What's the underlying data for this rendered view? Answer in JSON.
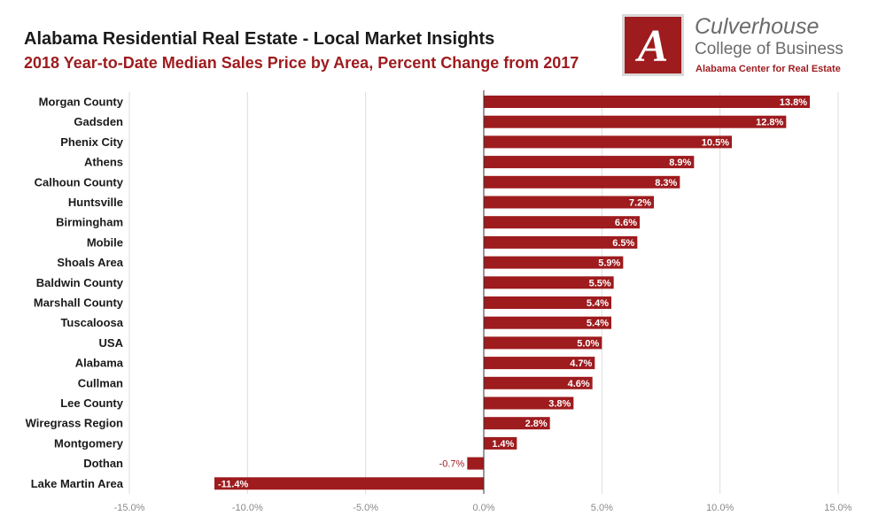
{
  "header": {
    "title": "Alabama Residential Real Estate - Local Market Insights",
    "subtitle": "2018 Year-to-Date Median Sales Price by Area, Percent Change from 2017"
  },
  "branding": {
    "logo_letter": "A",
    "name": "Culverhouse",
    "college": "College of Business",
    "center": "Alabama Center for Real Estate"
  },
  "colors": {
    "bar": "#9e1b1e",
    "accent": "#9e1b1e",
    "grid": "#dddddd",
    "zero_line": "#333333"
  },
  "chart_data": {
    "type": "bar",
    "orientation": "horizontal",
    "title": "2018 Year-to-Date Median Sales Price by Area, Percent Change from 2017",
    "categories": [
      "Morgan County",
      "Gadsden",
      "Phenix City",
      "Athens",
      "Calhoun County",
      "Huntsville",
      "Birmingham",
      "Mobile",
      "Shoals Area",
      "Baldwin County",
      "Marshall County",
      "Tuscaloosa",
      "USA",
      "Alabama",
      "Cullman",
      "Lee County",
      "Wiregrass Region",
      "Montgomery",
      "Dothan",
      "Lake Martin Area"
    ],
    "values": [
      13.8,
      12.8,
      10.5,
      8.9,
      8.3,
      7.2,
      6.6,
      6.5,
      5.9,
      5.5,
      5.4,
      5.4,
      5.0,
      4.7,
      4.6,
      3.8,
      2.8,
      1.4,
      -0.7,
      -11.4
    ],
    "value_labels": [
      "13.8%",
      "12.8%",
      "10.5%",
      "8.9%",
      "8.3%",
      "7.2%",
      "6.6%",
      "6.5%",
      "5.9%",
      "5.5%",
      "5.4%",
      "5.4%",
      "5.0%",
      "4.7%",
      "4.6%",
      "3.8%",
      "2.8%",
      "1.4%",
      "-0.7%",
      "-11.4%"
    ],
    "xlim": [
      -15,
      15
    ],
    "xticks": [
      -15,
      -10,
      -5,
      0,
      5,
      10,
      15
    ],
    "xtick_labels": [
      "-15.0%",
      "-10.0%",
      "-5.0%",
      "0.0%",
      "5.0%",
      "10.0%",
      "15.0%"
    ],
    "xlabel": "",
    "ylabel": "",
    "grid": true
  }
}
